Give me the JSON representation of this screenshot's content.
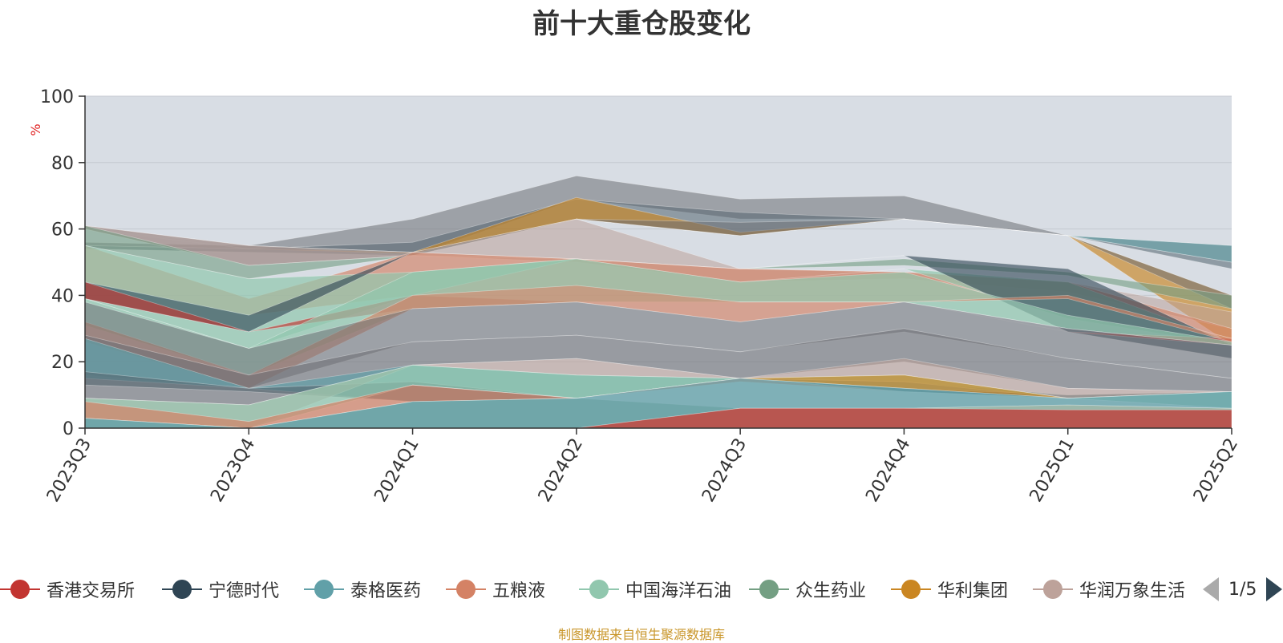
{
  "title": "前十大重仓股变化",
  "source_note": "制图数据来自恒生聚源数据库",
  "pager": {
    "text": "1/5"
  },
  "colors": {
    "background_plot": "#d8dde4",
    "grid": "#c4c9d0",
    "axis": "#333333",
    "unit_label": "#e02020",
    "source_note": "#c9962a"
  },
  "legend": [
    {
      "label": "香港交易所",
      "color": "#c23531"
    },
    {
      "label": "宁德时代",
      "color": "#2f4554"
    },
    {
      "label": "泰格医药",
      "color": "#61a0a8"
    },
    {
      "label": "五粮液",
      "color": "#d48265"
    },
    {
      "label": "中国海洋石油",
      "color": "#91c7ae"
    },
    {
      "label": "众生药业",
      "color": "#749f83"
    },
    {
      "label": "华利集团",
      "color": "#ca8622"
    },
    {
      "label": "华润万象生活",
      "color": "#bda29a"
    }
  ],
  "chart_data": {
    "type": "area",
    "stacked": false,
    "title": "前十大重仓股变化",
    "ylabel": "%",
    "xlabel": "",
    "ylim": [
      0,
      100
    ],
    "yticks": [
      0,
      20,
      40,
      60,
      80,
      100
    ],
    "categories": [
      "2023Q3",
      "2023Q4",
      "2024Q1",
      "2024Q2",
      "2024Q3",
      "2024Q4",
      "2025Q1",
      "2025Q2"
    ],
    "grid": true,
    "legend_position": "bottom",
    "bands": [
      {
        "color": "#6e7074",
        "alpha": 0.55,
        "upper": [
          56,
          55,
          63,
          76,
          69,
          70,
          58,
          55
        ],
        "lower": [
          55,
          54,
          52,
          69,
          63,
          63,
          58,
          50
        ]
      },
      {
        "color": "#546570",
        "alpha": 0.55,
        "upper": [
          55,
          54,
          56,
          69,
          65,
          63,
          58,
          50
        ],
        "lower": [
          54,
          53,
          52,
          63,
          58,
          63,
          58,
          48
        ]
      },
      {
        "color": "#61a0a8",
        "alpha": 0.65,
        "upper": [
          60,
          55,
          53,
          63,
          58,
          63,
          58,
          55
        ],
        "lower": [
          60,
          55,
          52,
          63,
          58,
          63,
          58,
          50
        ]
      },
      {
        "color": "#ca8622",
        "alpha": 0.65,
        "upper": [
          60,
          54,
          53,
          69.5,
          59,
          63,
          58,
          40
        ],
        "lower": [
          60,
          54,
          52.5,
          63,
          58,
          63,
          58,
          25
        ]
      },
      {
        "color": "#6e7074",
        "alpha": 0.55,
        "upper": [
          61,
          55,
          53,
          63,
          62,
          63,
          58,
          40
        ],
        "lower": [
          60,
          49,
          52,
          63,
          58,
          63,
          58,
          36
        ]
      },
      {
        "color": "#bda29a",
        "alpha": 0.55,
        "upper": [
          61,
          55,
          53,
          63,
          48,
          47,
          44,
          35
        ],
        "lower": [
          60,
          49,
          52,
          50,
          44,
          45,
          41,
          30
        ]
      },
      {
        "color": "#749f83",
        "alpha": 0.6,
        "upper": [
          61,
          49,
          52,
          51,
          48,
          51,
          47,
          40
        ],
        "lower": [
          55,
          45,
          52,
          51,
          48,
          49,
          46,
          36
        ]
      },
      {
        "color": "#d48265",
        "alpha": 0.65,
        "upper": [
          55,
          39,
          53,
          51,
          48,
          47,
          44,
          30
        ],
        "lower": [
          44,
          34,
          40,
          43,
          38,
          38,
          39,
          27
        ]
      },
      {
        "color": "#91c7ae",
        "alpha": 0.7,
        "upper": [
          55,
          45,
          47,
          51,
          44,
          48,
          44,
          26
        ],
        "lower": [
          39,
          24,
          40,
          51,
          44,
          48,
          33,
          25
        ]
      },
      {
        "color": "#2f4554",
        "alpha": 0.6,
        "upper": [
          44,
          34,
          53,
          51,
          48,
          52,
          48,
          25
        ],
        "lower": [
          39,
          29,
          53,
          51,
          48,
          52,
          29,
          21
        ]
      },
      {
        "color": "#c23531",
        "alpha": 0.65,
        "upper": [
          44,
          29,
          40,
          38,
          38,
          38,
          29,
          27
        ],
        "lower": [
          39,
          29,
          36,
          38,
          38,
          38,
          29,
          25
        ]
      },
      {
        "color": "#91c7ae",
        "alpha": 0.7,
        "upper": [
          39,
          24,
          47,
          51,
          44,
          47,
          34,
          26
        ],
        "lower": [
          31,
          16,
          36,
          38,
          38,
          38,
          30,
          25
        ]
      },
      {
        "color": "#d48265",
        "alpha": 0.65,
        "upper": [
          32,
          16,
          40,
          43,
          38,
          38,
          40,
          27
        ],
        "lower": [
          26,
          12,
          36,
          38,
          32,
          38,
          39,
          26
        ]
      },
      {
        "color": "#6e7074",
        "alpha": 0.55,
        "upper": [
          38,
          24,
          36,
          38,
          32,
          38,
          30,
          25
        ],
        "lower": [
          16,
          12,
          26,
          28,
          23,
          29,
          21,
          15
        ]
      },
      {
        "color": "#6e7074",
        "alpha": 0.6,
        "upper": [
          28,
          16,
          26,
          28,
          23,
          30,
          21,
          15
        ],
        "lower": [
          9,
          7,
          19,
          21,
          15,
          20,
          12,
          11
        ]
      },
      {
        "color": "#61a0a8",
        "alpha": 0.7,
        "upper": [
          27,
          12,
          19,
          16,
          15,
          14,
          10,
          11
        ],
        "lower": [
          15,
          12,
          8,
          9,
          15,
          11,
          9,
          11
        ]
      },
      {
        "color": "#546570",
        "alpha": 0.6,
        "upper": [
          17,
          12,
          14,
          9,
          15,
          12,
          10,
          11
        ],
        "lower": [
          13,
          11,
          8,
          9,
          15,
          11,
          9,
          11
        ]
      },
      {
        "color": "#bda29a",
        "alpha": 0.6,
        "upper": [
          9,
          7,
          19,
          21,
          15,
          21,
          12,
          11
        ],
        "lower": [
          3,
          0,
          19,
          16,
          15,
          16,
          9,
          11
        ]
      },
      {
        "color": "#91c7ae",
        "alpha": 0.7,
        "upper": [
          9,
          7,
          19,
          16,
          15,
          16,
          9,
          11
        ],
        "lower": [
          3,
          0,
          13,
          9,
          15,
          14,
          9,
          6
        ]
      },
      {
        "color": "#ca8622",
        "alpha": 0.7,
        "upper": [
          3,
          0,
          13,
          9,
          15,
          16,
          9,
          6
        ],
        "lower": [
          3,
          0,
          13,
          9,
          15,
          12,
          9,
          6
        ]
      },
      {
        "color": "#d48265",
        "alpha": 0.7,
        "upper": [
          8,
          2,
          13,
          9,
          15,
          11,
          9,
          6
        ],
        "lower": [
          3,
          0,
          8,
          9,
          14,
          11,
          9,
          6
        ]
      },
      {
        "color": "#749f83",
        "alpha": 0.6,
        "upper": [
          3,
          0,
          8,
          9,
          6,
          6,
          7,
          6
        ],
        "lower": [
          0,
          0,
          0,
          0,
          0,
          0,
          0,
          0
        ]
      },
      {
        "color": "#61a0a8",
        "alpha": 0.75,
        "upper": [
          3,
          0,
          8,
          9,
          15,
          12,
          9,
          11
        ],
        "lower": [
          0,
          0,
          0,
          0,
          6,
          6,
          7,
          6
        ]
      },
      {
        "color": "#c23531",
        "alpha": 0.75,
        "upper": [
          0,
          0,
          0,
          0,
          6,
          6,
          5.5,
          5.5
        ],
        "lower": [
          0,
          0,
          0,
          0,
          0,
          0,
          0,
          0
        ]
      }
    ]
  }
}
